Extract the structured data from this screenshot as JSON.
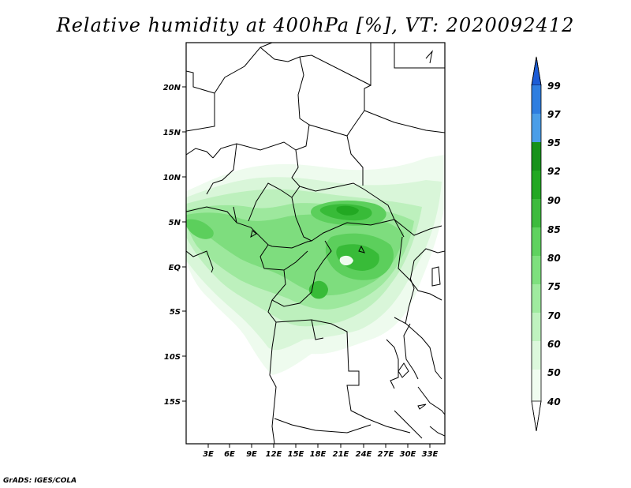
{
  "title": "Relative humidity at 400hPa [%], VT: 2020092412",
  "credit": "GrADS: IGES/COLA",
  "map": {
    "lon_ticks": [
      "3E",
      "6E",
      "9E",
      "12E",
      "15E",
      "18E",
      "21E",
      "24E",
      "27E",
      "30E",
      "33E"
    ],
    "lat_ticks": [
      "20N",
      "15N",
      "10N",
      "5N",
      "EQ",
      "5S",
      "10S",
      "15S"
    ]
  },
  "colorbar": {
    "levels": [
      "99",
      "97",
      "95",
      "92",
      "90",
      "85",
      "80",
      "75",
      "70",
      "60",
      "50",
      "40"
    ],
    "colors": [
      "#1c5cd6",
      "#2e7ee0",
      "#4a9ee8",
      "#16921a",
      "#22a822",
      "#3dbb3d",
      "#5fd25f",
      "#7ee07e",
      "#9fea9f",
      "#bff2bf",
      "#dcf8dc",
      "#f0fcf0"
    ]
  }
}
